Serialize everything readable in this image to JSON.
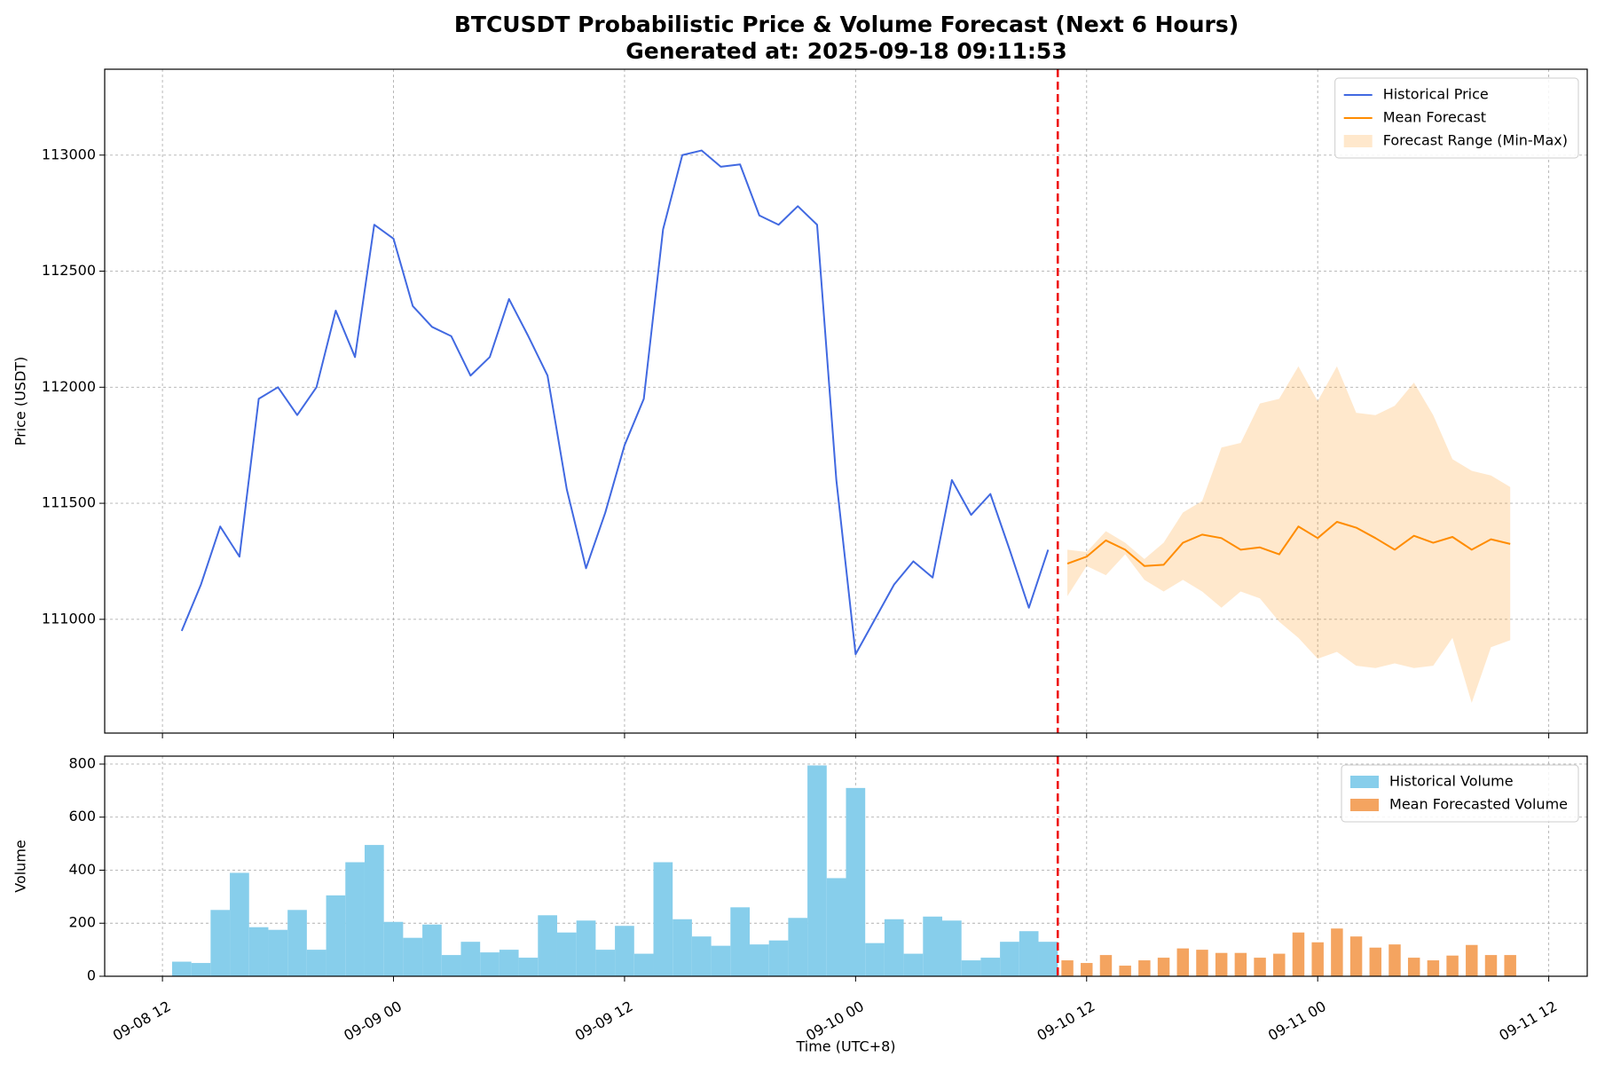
{
  "chart_data": [
    {
      "type": "line",
      "title": "BTCUSDT Probabilistic Price & Volume Forecast (Next 6 Hours)",
      "subtitle": "Generated at: 2025-09-18 09:11:53",
      "ylabel": "Price (USDT)",
      "xlim": [
        "09-08 09",
        "09-11 14"
      ],
      "xticks": [
        "09-08 12",
        "09-09 00",
        "09-09 12",
        "09-10 00",
        "09-10 12",
        "09-11 00",
        "09-11 12"
      ],
      "ylim": [
        110510,
        113370
      ],
      "yticks": [
        111000,
        111500,
        112000,
        112500,
        113000
      ],
      "grid": true,
      "legend": "upper right",
      "series": [
        {
          "name": "Historical Price",
          "type": "line",
          "color": "#4169e1",
          "x": [
            "09-08 13",
            "09-08 14",
            "09-08 15",
            "09-08 16",
            "09-08 17",
            "09-08 18",
            "09-08 19",
            "09-08 20",
            "09-08 21",
            "09-08 22",
            "09-08 23",
            "09-09 00",
            "09-09 01",
            "09-09 02",
            "09-09 03",
            "09-09 04",
            "09-09 05",
            "09-09 06",
            "09-09 07",
            "09-09 08",
            "09-09 09",
            "09-09 10",
            "09-09 11",
            "09-09 12",
            "09-09 13",
            "09-09 14",
            "09-09 15",
            "09-09 16",
            "09-09 17",
            "09-09 18",
            "09-09 19",
            "09-09 20",
            "09-09 21",
            "09-09 22",
            "09-09 23",
            "09-10 00",
            "09-10 01",
            "09-10 02",
            "09-10 03",
            "09-10 04",
            "09-10 05",
            "09-10 06",
            "09-10 07",
            "09-10 08",
            "09-10 09",
            "09-10 10"
          ],
          "values": [
            110950,
            111150,
            111400,
            111270,
            111950,
            112000,
            111880,
            112000,
            112330,
            112130,
            112700,
            112640,
            112350,
            112260,
            112220,
            112050,
            112130,
            112380,
            112220,
            112050,
            111560,
            111220,
            111460,
            111750,
            111950,
            112680,
            113000,
            113020,
            112950,
            112960,
            112740,
            112700,
            112780,
            112700,
            111600,
            110850,
            111000,
            111150,
            111250,
            111180,
            111600,
            111450,
            111540,
            111300,
            111050,
            111300
          ]
        },
        {
          "name": "Mean Forecast",
          "type": "line",
          "color": "#ff8c00",
          "x": [
            "09-10 11",
            "09-10 12",
            "09-10 13",
            "09-10 14",
            "09-10 15",
            "09-10 16",
            "09-10 17",
            "09-10 18",
            "09-10 19",
            "09-10 20",
            "09-10 21",
            "09-10 22",
            "09-10 23",
            "09-11 00",
            "09-11 01",
            "09-11 02",
            "09-11 03",
            "09-11 04",
            "09-11 05",
            "09-11 06",
            "09-11 07",
            "09-11 08",
            "09-11 09",
            "09-11 10"
          ],
          "values": [
            111240,
            111270,
            111340,
            111300,
            111230,
            111235,
            111330,
            111365,
            111350,
            111300,
            111310,
            111280,
            111400,
            111350,
            111420,
            111395,
            111350,
            111300,
            111360,
            111330,
            111355,
            111300,
            111345,
            111325
          ]
        },
        {
          "name": "Forecast Range (Min-Max)",
          "type": "band",
          "color": "#ff8c00",
          "alpha": 0.2,
          "x": [
            "09-10 11",
            "09-10 12",
            "09-10 13",
            "09-10 14",
            "09-10 15",
            "09-10 16",
            "09-10 17",
            "09-10 18",
            "09-10 19",
            "09-10 20",
            "09-10 21",
            "09-10 22",
            "09-10 23",
            "09-11 00",
            "09-11 01",
            "09-11 02",
            "09-11 03",
            "09-11 04",
            "09-11 05",
            "09-11 06",
            "09-11 07",
            "09-11 08",
            "09-11 09",
            "09-11 10"
          ],
          "lower": [
            111100,
            111230,
            111190,
            111280,
            111170,
            111120,
            111170,
            111120,
            111050,
            111120,
            111090,
            110990,
            110920,
            110830,
            110860,
            110800,
            110790,
            110810,
            110790,
            110800,
            110920,
            110640,
            110880,
            110910
          ],
          "upper": [
            111300,
            111290,
            111380,
            111330,
            111260,
            111330,
            111460,
            111510,
            111740,
            111760,
            111930,
            111950,
            112090,
            111940,
            112090,
            111890,
            111880,
            111920,
            112020,
            111880,
            111690,
            111640,
            111620,
            111570
          ]
        }
      ]
    },
    {
      "type": "bar",
      "ylabel": "Volume",
      "xlabel": "Time (UTC+8)",
      "xlim": [
        "09-08 09",
        "09-11 14"
      ],
      "xticks": [
        "09-08 12",
        "09-09 00",
        "09-09 12",
        "09-10 00",
        "09-10 12",
        "09-11 00",
        "09-11 12"
      ],
      "ylim": [
        0,
        830
      ],
      "yticks": [
        0,
        200,
        400,
        600,
        800
      ],
      "grid": true,
      "legend": "upper right",
      "series": [
        {
          "name": "Historical Volume",
          "color": "#87ceeb",
          "x": [
            "09-08 13",
            "09-08 14",
            "09-08 15",
            "09-08 16",
            "09-08 17",
            "09-08 18",
            "09-08 19",
            "09-08 20",
            "09-08 21",
            "09-08 22",
            "09-08 23",
            "09-09 00",
            "09-09 01",
            "09-09 02",
            "09-09 03",
            "09-09 04",
            "09-09 05",
            "09-09 06",
            "09-09 07",
            "09-09 08",
            "09-09 09",
            "09-09 10",
            "09-09 11",
            "09-09 12",
            "09-09 13",
            "09-09 14",
            "09-09 15",
            "09-09 16",
            "09-09 17",
            "09-09 18",
            "09-09 19",
            "09-09 20",
            "09-09 21",
            "09-09 22",
            "09-09 23",
            "09-10 00",
            "09-10 01",
            "09-10 02",
            "09-10 03",
            "09-10 04",
            "09-10 05",
            "09-10 06",
            "09-10 07",
            "09-10 08",
            "09-10 09",
            "09-10 10"
          ],
          "values": [
            55,
            50,
            250,
            390,
            185,
            175,
            250,
            100,
            305,
            430,
            495,
            205,
            145,
            195,
            80,
            130,
            90,
            100,
            70,
            230,
            165,
            210,
            100,
            190,
            85,
            430,
            215,
            150,
            115,
            260,
            120,
            135,
            220,
            795,
            370,
            710,
            125,
            215,
            85,
            225,
            210,
            60,
            70,
            130,
            170,
            130
          ]
        },
        {
          "name": "Mean Forecasted Volume",
          "color": "#f4a460",
          "x": [
            "09-10 11",
            "09-10 12",
            "09-10 13",
            "09-10 14",
            "09-10 15",
            "09-10 16",
            "09-10 17",
            "09-10 18",
            "09-10 19",
            "09-10 20",
            "09-10 21",
            "09-10 22",
            "09-10 23",
            "09-11 00",
            "09-11 01",
            "09-11 02",
            "09-11 03",
            "09-11 04",
            "09-11 05",
            "09-11 06",
            "09-11 07",
            "09-11 08",
            "09-11 09",
            "09-11 10"
          ],
          "values": [
            60,
            50,
            80,
            40,
            60,
            70,
            105,
            100,
            88,
            88,
            70,
            85,
            165,
            128,
            180,
            150,
            108,
            120,
            70,
            60,
            78,
            118,
            80,
            80
          ]
        }
      ]
    }
  ]
}
